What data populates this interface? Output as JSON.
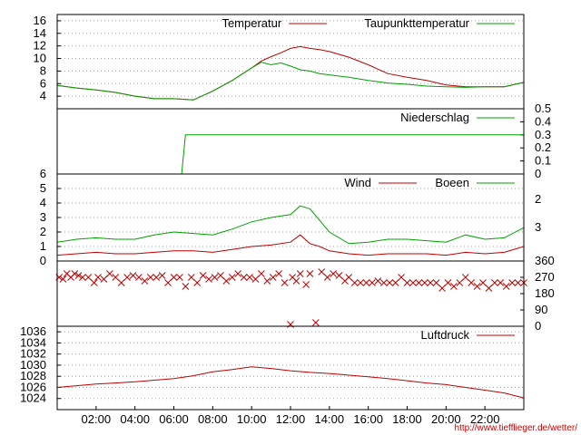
{
  "source_url": "http://www.tiefflieger.de/wetter/",
  "colors": {
    "series_red": "#c00000",
    "series_green": "#00a000",
    "grid": "#a0a0a0"
  },
  "chart_data": [
    {
      "type": "line",
      "ylim": [
        2,
        17
      ],
      "yticks": [
        "4",
        "6",
        "8",
        "10",
        "12",
        "14",
        "16"
      ],
      "grid": true,
      "legend": "top-right",
      "series": [
        {
          "name": "Temperatur",
          "color": "#c00000",
          "x": [
            0,
            1,
            2,
            3,
            4,
            5,
            6,
            7,
            8,
            9,
            10,
            10.5,
            11,
            11.5,
            12,
            12.5,
            13,
            13.5,
            14,
            15,
            16,
            17,
            18,
            19,
            20,
            21,
            22,
            23,
            24
          ],
          "y": [
            5.7,
            5.3,
            5.0,
            4.6,
            4.0,
            3.6,
            3.6,
            3.4,
            4.8,
            6.5,
            8.5,
            9.6,
            10.3,
            10.9,
            11.6,
            11.9,
            11.6,
            11.4,
            11.1,
            10.2,
            9.0,
            7.6,
            7.0,
            6.5,
            5.8,
            5.5,
            5.5,
            5.5,
            6.2
          ]
        },
        {
          "name": "Taupunkttemperatur",
          "color": "#00a000",
          "x": [
            0,
            1,
            2,
            3,
            4,
            5,
            6,
            7,
            8,
            9,
            10,
            10.5,
            11,
            11.5,
            12,
            12.5,
            13,
            13.5,
            14,
            15,
            16,
            17,
            18,
            19,
            20,
            21,
            22,
            23,
            24
          ],
          "y": [
            5.7,
            5.3,
            5.0,
            4.6,
            4.0,
            3.6,
            3.6,
            3.4,
            4.8,
            6.5,
            8.5,
            9.4,
            9.0,
            9.3,
            8.8,
            8.2,
            8.0,
            7.6,
            7.4,
            7.0,
            6.5,
            6.1,
            5.9,
            5.6,
            5.5,
            5.4,
            5.5,
            5.5,
            6.2
          ]
        }
      ]
    },
    {
      "type": "line",
      "ylim": [
        0,
        0.5
      ],
      "yticks": [
        "0",
        "0.1",
        "0.2",
        "0.3",
        "0.4",
        "0.5"
      ],
      "legend": "top-right",
      "series": [
        {
          "name": "Niederschlag",
          "color": "#00a000",
          "x": [
            0,
            6.4,
            6.4,
            6.6,
            6.6,
            24
          ],
          "y": [
            0,
            0,
            0,
            0.3,
            0.3,
            0.3
          ]
        }
      ]
    },
    {
      "type": "line",
      "ylim": [
        0,
        6
      ],
      "yticks": [
        "0",
        "1",
        "2",
        "3",
        "4",
        "5",
        "6"
      ],
      "yticks_right": [
        "2",
        "3"
      ],
      "grid": true,
      "legend": "top-right",
      "series": [
        {
          "name": "Wind",
          "color": "#c00000",
          "x": [
            0,
            1,
            2,
            3,
            4,
            5,
            6,
            7,
            8,
            9,
            10,
            11,
            12,
            12.5,
            13,
            13.5,
            14,
            15,
            16,
            17,
            18,
            19,
            20,
            21,
            22,
            23,
            24
          ],
          "y": [
            0.4,
            0.5,
            0.6,
            0.5,
            0.5,
            0.6,
            0.7,
            0.7,
            0.6,
            0.8,
            1.0,
            1.1,
            1.3,
            1.8,
            1.2,
            1.0,
            0.7,
            0.5,
            0.4,
            0.5,
            0.5,
            0.5,
            0.4,
            0.6,
            0.5,
            0.6,
            1.0
          ]
        },
        {
          "name": "Boeen",
          "color": "#00a000",
          "x": [
            0,
            1,
            2,
            3,
            4,
            5,
            6,
            7,
            8,
            9,
            10,
            11,
            12,
            12.5,
            13,
            13.5,
            14,
            15,
            16,
            17,
            18,
            19,
            20,
            21,
            22,
            23,
            24
          ],
          "y": [
            1.3,
            1.5,
            1.6,
            1.5,
            1.5,
            1.8,
            2.0,
            1.9,
            1.8,
            2.2,
            2.7,
            3.0,
            3.2,
            3.8,
            3.6,
            2.8,
            2.0,
            1.2,
            1.3,
            1.5,
            1.5,
            1.4,
            1.3,
            1.8,
            1.5,
            1.6,
            2.3
          ]
        }
      ]
    },
    {
      "type": "scatter",
      "ylim": [
        0,
        360
      ],
      "yticks": [
        "0",
        "90",
        "180",
        "270",
        "360"
      ],
      "series": [
        {
          "color": "#c00000",
          "x": [
            0.1,
            0.3,
            0.5,
            0.7,
            0.9,
            1.1,
            1.3,
            1.6,
            1.9,
            2.1,
            2.4,
            2.7,
            3.0,
            3.3,
            3.6,
            3.9,
            4.2,
            4.5,
            4.8,
            5.1,
            5.4,
            5.7,
            6.0,
            6.3,
            6.6,
            6.9,
            7.2,
            7.5,
            7.8,
            8.1,
            8.4,
            8.7,
            9.0,
            9.3,
            9.6,
            9.9,
            10.2,
            10.5,
            10.8,
            11.1,
            11.4,
            11.7,
            12.0,
            12.1,
            12.3,
            12.5,
            12.8,
            13.0,
            13.3,
            13.6,
            13.9,
            14.2,
            14.5,
            14.8,
            15.0,
            15.3,
            15.6,
            15.9,
            16.2,
            16.5,
            16.8,
            17.1,
            17.4,
            17.7,
            18.0,
            18.3,
            18.6,
            18.9,
            19.2,
            19.5,
            19.8,
            20.1,
            20.4,
            20.7,
            21.0,
            21.3,
            21.6,
            21.9,
            22.2,
            22.5,
            22.8,
            23.1,
            23.4,
            23.7,
            24.0
          ],
          "y": [
            270,
            260,
            290,
            270,
            290,
            280,
            270,
            270,
            240,
            270,
            260,
            290,
            270,
            240,
            270,
            280,
            270,
            250,
            270,
            270,
            280,
            240,
            270,
            270,
            220,
            270,
            240,
            280,
            260,
            270,
            280,
            250,
            270,
            290,
            270,
            270,
            260,
            290,
            250,
            270,
            290,
            240,
            10,
            270,
            250,
            290,
            230,
            290,
            20,
            300,
            270,
            290,
            280,
            250,
            270,
            240,
            240,
            240,
            240,
            250,
            240,
            240,
            240,
            270,
            240,
            240,
            240,
            240,
            240,
            240,
            210,
            240,
            220,
            240,
            270,
            240,
            220,
            240,
            210,
            240,
            240,
            220,
            240,
            240,
            240
          ]
        }
      ]
    },
    {
      "type": "line",
      "ylim": [
        1022,
        1037
      ],
      "yticks": [
        "1024",
        "1026",
        "1028",
        "1030",
        "1032",
        "1034",
        "1036"
      ],
      "xticks": [
        "02:00",
        "04:00",
        "06:00",
        "08:00",
        "10:00",
        "12:00",
        "14:00",
        "16:00",
        "18:00",
        "20:00",
        "22:00"
      ],
      "grid": true,
      "legend": "top-right",
      "series": [
        {
          "name": "Luftdruck",
          "color": "#c00000",
          "x": [
            0,
            1,
            2,
            3,
            4,
            5,
            6,
            7,
            8,
            9,
            10,
            11,
            12,
            13,
            14,
            15,
            16,
            17,
            18,
            19,
            20,
            21,
            22,
            23,
            24
          ],
          "y": [
            1026.0,
            1026.3,
            1026.6,
            1026.8,
            1027.0,
            1027.3,
            1027.6,
            1028.1,
            1028.8,
            1029.2,
            1029.7,
            1029.4,
            1029.0,
            1028.7,
            1028.5,
            1028.2,
            1027.9,
            1027.6,
            1027.2,
            1026.8,
            1026.5,
            1026.0,
            1025.5,
            1025.0,
            1024.1
          ]
        }
      ]
    }
  ]
}
